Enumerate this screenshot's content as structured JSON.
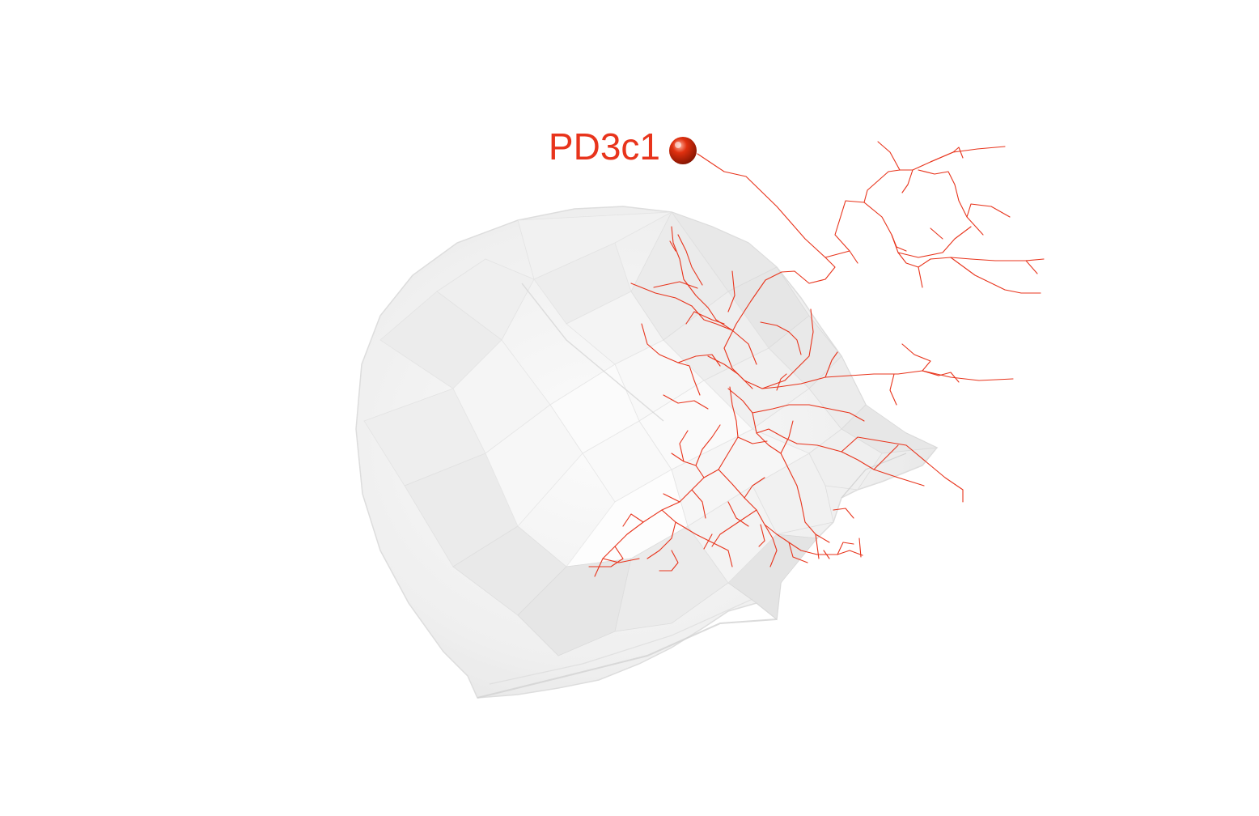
{
  "neuron": {
    "label": "PD3c1",
    "color": "#e8341c",
    "soma_color": "#cc1f06"
  },
  "mesh": {
    "color": "#e9e9e9",
    "edge_color": "#d4d4d4",
    "highlight_color": "#fafafa"
  }
}
